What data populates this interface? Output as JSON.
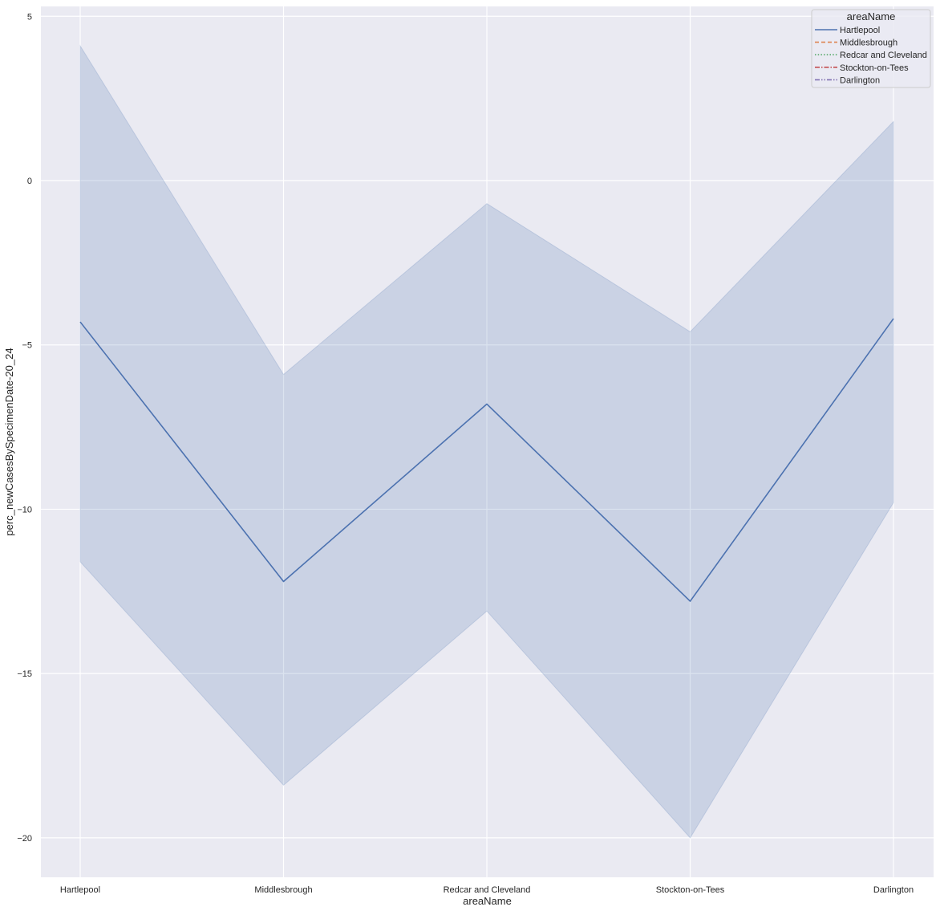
{
  "chart_data": {
    "type": "line",
    "xlabel": "areaName",
    "ylabel": "perc_newCasesBySpecimenDate-20_24",
    "categories": [
      "Hartlepool",
      "Middlesbrough",
      "Redcar and Cleveland",
      "Stockton-on-Tees",
      "Darlington"
    ],
    "ylim": [
      -21.2,
      5.3
    ],
    "yticks": [
      5,
      0,
      -5,
      -10,
      -15,
      -20
    ],
    "grid": true,
    "background_color": "#eaeaf2",
    "legend": {
      "title": "areaName",
      "placement": "top-right",
      "entries": [
        {
          "label": "Hartlepool",
          "color": "#4c72b0",
          "dash": "solid"
        },
        {
          "label": "Middlesbrough",
          "color": "#dd8452",
          "dash": "dashed"
        },
        {
          "label": "Redcar and Cleveland",
          "color": "#55a868",
          "dash": "dotted"
        },
        {
          "label": "Stockton-on-Tees",
          "color": "#c44e52",
          "dash": "dashdot"
        },
        {
          "label": "Darlington",
          "color": "#8172b3",
          "dash": "dashdotdot"
        }
      ]
    },
    "series": [
      {
        "name": "Hartlepool",
        "color": "#4c72b0",
        "values": [
          -4.3,
          -12.2,
          -6.8,
          -12.8,
          -4.2
        ],
        "ci_upper": [
          4.1,
          -5.9,
          -0.7,
          -4.6,
          1.8
        ],
        "ci_lower": [
          -11.6,
          -18.4,
          -13.1,
          -20.0,
          -9.8
        ]
      }
    ]
  }
}
